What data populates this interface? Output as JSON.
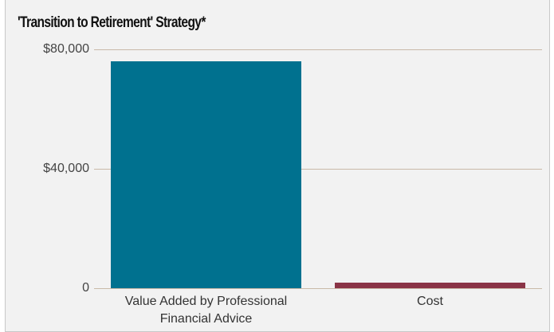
{
  "chart_data": {
    "type": "bar",
    "title": "'Transition to Retirement' Strategy*",
    "categories": [
      "Value Added by Professional Financial Advice",
      "Cost"
    ],
    "values": [
      76000,
      2000
    ],
    "colors": [
      "#00718f",
      "#8a3446"
    ],
    "ylim": [
      0,
      80000
    ],
    "yticks": [
      0,
      {
        "value": 40000,
        "label": "$40,000"
      },
      {
        "value": 80000,
        "label": "$80,000"
      }
    ],
    "grid": true
  }
}
